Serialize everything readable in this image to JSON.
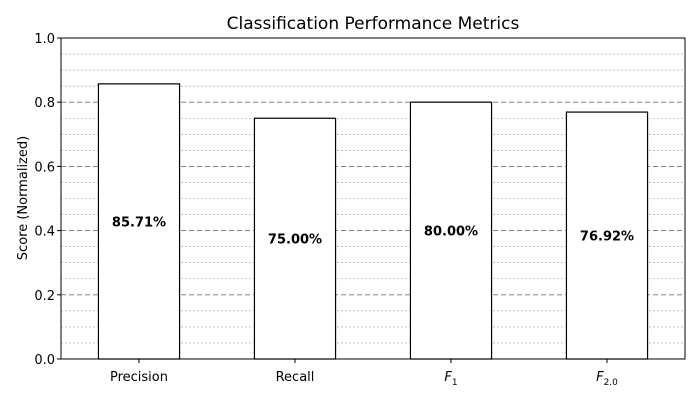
{
  "chart_data": {
    "type": "bar",
    "title": "Classification Performance Metrics",
    "xlabel": "",
    "ylabel": "Score (Normalized)",
    "ylim": [
      0,
      1.0
    ],
    "yticks": [
      "0.0",
      "0.2",
      "0.4",
      "0.6",
      "0.8",
      "1.0"
    ],
    "categories": [
      {
        "label": "Precision",
        "main": "Precision",
        "sub": "",
        "italic": false
      },
      {
        "label": "Recall",
        "main": "Recall",
        "sub": "",
        "italic": false
      },
      {
        "label": "F1",
        "main": "F",
        "sub": "1",
        "italic": true
      },
      {
        "label": "F2.0",
        "main": "F",
        "sub": "2.0",
        "italic": true
      }
    ],
    "values": [
      0.8571,
      0.75,
      0.8,
      0.7692
    ],
    "value_labels": [
      "85.71%",
      "75.00%",
      "80.00%",
      "76.92%"
    ],
    "grid": {
      "major": true,
      "minor": true,
      "style": "dashed"
    },
    "colors": {
      "bar_fill": "#ffffff",
      "bar_edge": "#000000",
      "major_grid": "#777777",
      "minor_grid": "#999999"
    }
  }
}
